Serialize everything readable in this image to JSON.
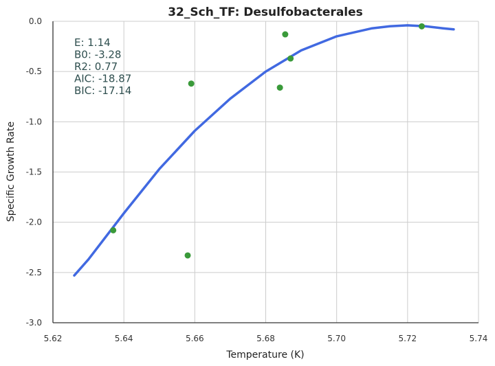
{
  "chart_data": {
    "type": "scatter",
    "title": "32_Sch_TF: Desulfobacterales",
    "xlabel": "Temperature (K)",
    "ylabel": "Specific Growth Rate",
    "xlim": [
      5.62,
      5.74
    ],
    "ylim": [
      -3.0,
      0.0
    ],
    "x_ticks": [
      "5.62",
      "5.64",
      "5.66",
      "5.68",
      "5.70",
      "5.72",
      "5.74"
    ],
    "y_ticks": [
      "0.0",
      "-0.5",
      "-1.0",
      "-1.5",
      "-2.0",
      "-2.5",
      "-3.0"
    ],
    "grid": true,
    "points": [
      {
        "x": 5.637,
        "y": -2.08
      },
      {
        "x": 5.658,
        "y": -2.33
      },
      {
        "x": 5.659,
        "y": -0.62
      },
      {
        "x": 5.684,
        "y": -0.66
      },
      {
        "x": 5.6855,
        "y": -0.13
      },
      {
        "x": 5.687,
        "y": -0.37
      },
      {
        "x": 5.724,
        "y": -0.05
      }
    ],
    "fit_curve": {
      "x": [
        5.626,
        5.63,
        5.64,
        5.65,
        5.66,
        5.67,
        5.68,
        5.69,
        5.7,
        5.71,
        5.715,
        5.72,
        5.725,
        5.73,
        5.733
      ],
      "y": [
        -2.53,
        -2.37,
        -1.91,
        -1.47,
        -1.09,
        -0.77,
        -0.5,
        -0.29,
        -0.15,
        -0.07,
        -0.05,
        -0.04,
        -0.05,
        -0.07,
        -0.08
      ]
    },
    "stats": [
      "E:  1.14",
      "B0:  -3.28",
      "R2:  0.77",
      "AIC: -18.87",
      "BIC: -17.14"
    ],
    "colors": {
      "curve": "#4169e1",
      "points": "#3a9a3a",
      "grid": "#cccccc",
      "axis": "#333333",
      "stats_text": "#2f4f4f"
    }
  }
}
